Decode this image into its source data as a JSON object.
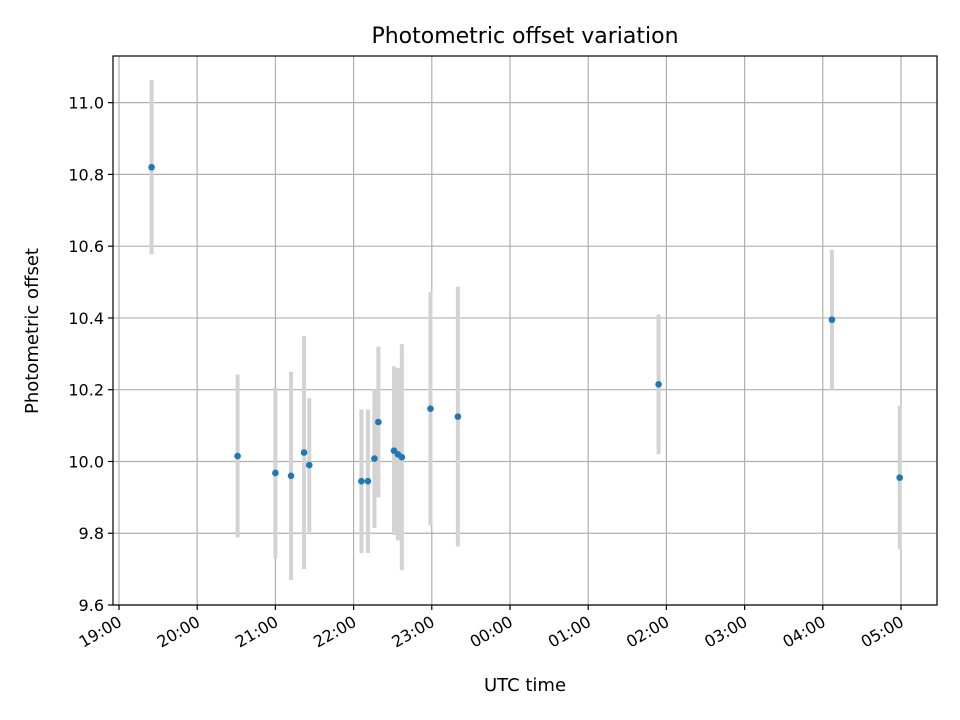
{
  "chart_data": {
    "type": "scatter",
    "title": "Photometric offset variation",
    "xlabel": "UTC time",
    "ylabel": "Photometric offset",
    "grid": true,
    "x_start": "2000-01-01T19:00",
    "x_end": "2000-01-02T05:30",
    "xticks": [
      "19:00",
      "20:00",
      "21:00",
      "22:00",
      "23:00",
      "00:00",
      "01:00",
      "02:00",
      "03:00",
      "04:00",
      "05:00"
    ],
    "ylim": [
      9.6,
      11.13
    ],
    "yticks": [
      "9.6",
      "9.8",
      "10.0",
      "10.2",
      "10.4",
      "10.6",
      "10.8",
      "11.0"
    ],
    "colors": {
      "point": "#1f77b4",
      "error_bar": "#d3d3d3"
    },
    "series": [
      {
        "points": [
          {
            "t": "19:25",
            "y": 10.82,
            "err": 0.243
          },
          {
            "t": "20:31",
            "y": 10.015,
            "err": 0.227
          },
          {
            "t": "21:00",
            "y": 9.968,
            "err": 0.238
          },
          {
            "t": "21:12",
            "y": 9.96,
            "err": 0.29
          },
          {
            "t": "21:22",
            "y": 10.025,
            "err": 0.325
          },
          {
            "t": "21:26",
            "y": 9.99,
            "err": 0.186
          },
          {
            "t": "22:06",
            "y": 9.945,
            "err": 0.2
          },
          {
            "t": "22:11",
            "y": 9.945,
            "err": 0.2
          },
          {
            "t": "22:16",
            "y": 10.008,
            "err": 0.193
          },
          {
            "t": "22:19",
            "y": 10.11,
            "err": 0.21
          },
          {
            "t": "22:31",
            "y": 10.03,
            "err": 0.235
          },
          {
            "t": "22:34",
            "y": 10.02,
            "err": 0.24
          },
          {
            "t": "22:37",
            "y": 10.012,
            "err": 0.315
          },
          {
            "t": "22:59",
            "y": 10.147,
            "err": 0.325
          },
          {
            "t": "23:20",
            "y": 10.125,
            "err": 0.362
          },
          {
            "t": "01:54",
            "y": 10.215,
            "err": 0.195
          },
          {
            "t": "04:07",
            "y": 10.395,
            "err": 0.195
          },
          {
            "t": "04:59",
            "y": 9.955,
            "err": 0.2
          }
        ]
      }
    ]
  }
}
